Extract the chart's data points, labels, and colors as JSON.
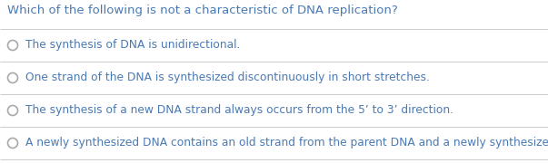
{
  "title": "Which of the following is not a characteristic of DNA replication?",
  "title_color": "#4a7ab5",
  "background_color": "#ffffff",
  "divider_color": "#cccccc",
  "options": [
    "The synthesis of DNA is unidirectional.",
    "One strand of the DNA is synthesized discontinuously in short stretches.",
    "The synthesis of a new DNA strand always occurs from the 5’ to 3’ direction.",
    "A newly synthesized DNA contains an old strand from the parent DNA and a newly synthesized DNA strand."
  ],
  "option_color": "#4a7ab5",
  "circle_edge_color": "#aaaaaa",
  "title_fontsize": 9.5,
  "option_fontsize": 8.8,
  "figwidth": 6.03,
  "figheight": 1.8,
  "dpi": 100
}
